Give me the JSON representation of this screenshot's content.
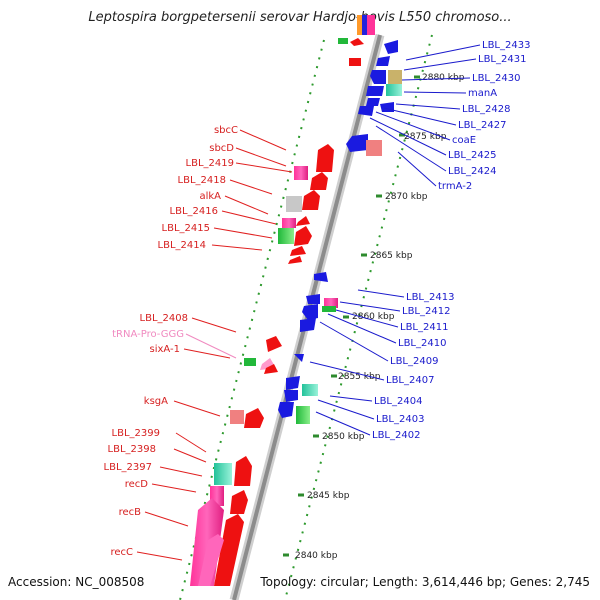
{
  "title": "Leptospira borgpetersenii serovar Hardjo-bovis L550 chromoso...",
  "footer": {
    "accession": "Accession: NC_008508",
    "summary": "Topology: circular; Length: 3,614,446 bp; Genes: 2,745"
  },
  "colors": {
    "backbone": "#8c8c8c",
    "ruler_tick": "#2e8b2e",
    "forward_label": "#d62020",
    "reverse_label": "#1a1acc",
    "trna_label": "#f08ac0"
  },
  "ruler_labels": [
    "2880 kbp",
    "2875 kbp",
    "2870 kbp",
    "2865 kbp",
    "2860 kbp",
    "2855 kbp",
    "2850 kbp",
    "2845 kbp",
    "2840 kbp"
  ],
  "forward_labels": [
    "sbcC",
    "sbcD",
    "LBL_2419",
    "LBL_2418",
    "alkA",
    "LBL_2416",
    "LBL_2415",
    "LBL_2414",
    "LBL_2408",
    "tRNA-Pro-GGG",
    "sixA-1",
    "ksgA",
    "LBL_2399",
    "LBL_2398",
    "LBL_2397",
    "recD",
    "recB",
    "recC"
  ],
  "reverse_labels": [
    "LBL_2433",
    "LBL_2431",
    "LBL_2430",
    "manA",
    "LBL_2428",
    "LBL_2427",
    "coaE",
    "LBL_2425",
    "LBL_2424",
    "trmA-2",
    "LBL_2413",
    "LBL_2412",
    "LBL_2411",
    "LBL_2410",
    "LBL_2409",
    "LBL_2407",
    "LBL_2404",
    "LBL_2403",
    "LBL_2402"
  ]
}
